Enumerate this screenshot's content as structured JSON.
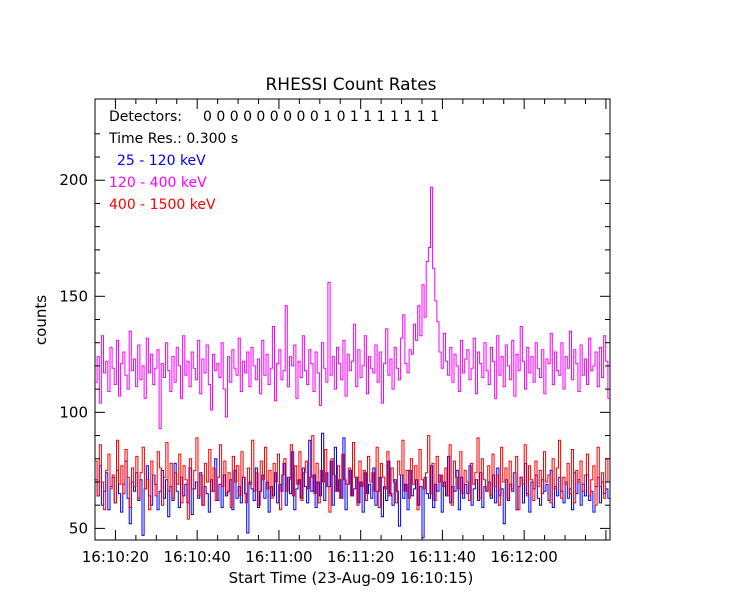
{
  "chart_data": {
    "type": "line",
    "title": "RHESSI Count Rates",
    "xlabel": "Start Time (23-Aug-09 16:10:15)",
    "ylabel": "counts",
    "x_unit": "seconds",
    "x_range": [
      0,
      126
    ],
    "ylim": [
      45,
      235
    ],
    "y_ticks": [
      50,
      100,
      150,
      200
    ],
    "x_tick_values": [
      5,
      25,
      45,
      65,
      85,
      105
    ],
    "x_tick_labels": [
      "16:10:20",
      "16:10:40",
      "16:11:00",
      "16:11:20",
      "16:11:40",
      "16:12:00"
    ],
    "grid": false,
    "annotations": {
      "detectors_label": "Detectors:",
      "detectors_flags": "0 0 0 0 0 0 0 0 0 1 0 1 1 1 1 1 1 1",
      "time_res": "Time Res.: 0.300 s"
    },
    "legend_placement": "top-left",
    "series": [
      {
        "name": "25 - 120 keV",
        "color": "#0000ff",
        "y": [
          71,
          64,
          77,
          60,
          66,
          74,
          58,
          68,
          72,
          61,
          75,
          65,
          57,
          69,
          79,
          63,
          52,
          70,
          66,
          74,
          62,
          71,
          47,
          67,
          77,
          64,
          60,
          73,
          69,
          58,
          66,
          75,
          63,
          71,
          55,
          68,
          62,
          78,
          66,
          59,
          72,
          64,
          69,
          61,
          76,
          56,
          67,
          70,
          63,
          74,
          60,
          68,
          65,
          57,
          71,
          66,
          80,
          62,
          69,
          59,
          73,
          64,
          66,
          71,
          58,
          75,
          63,
          68,
          61,
          72,
          65,
          48,
          70,
          67,
          62,
          76,
          59,
          66,
          73,
          63,
          70,
          57,
          68,
          64,
          74,
          61,
          69,
          66,
          78,
          60,
          72,
          65,
          83,
          58,
          67,
          71,
          63,
          76,
          68,
          61,
          88,
          66,
          73,
          59,
          70,
          64,
          91,
          62,
          74,
          68,
          79,
          60,
          85,
          66,
          71,
          63,
          89,
          58,
          69,
          75,
          64,
          67,
          72,
          61,
          70,
          57,
          74,
          65,
          69,
          63,
          76,
          60,
          66,
          72,
          55,
          68,
          62,
          79,
          65,
          60,
          71,
          66,
          51,
          73,
          63,
          69,
          58,
          75,
          64,
          67,
          71,
          60,
          68,
          46,
          72,
          65,
          63,
          77,
          59,
          69,
          66,
          73,
          57,
          70,
          64,
          81,
          61,
          68,
          66,
          75,
          58,
          72,
          63,
          69,
          65,
          77,
          60,
          67,
          71,
          62,
          74,
          59,
          68,
          66,
          70,
          63,
          73,
          61,
          76,
          64,
          67,
          52,
          71,
          62,
          69,
          66,
          74,
          58,
          68,
          72,
          61,
          78,
          65,
          57,
          70,
          67,
          73,
          63,
          60,
          71,
          66,
          69,
          62,
          75,
          59,
          68,
          64,
          72,
          66,
          61,
          70,
          63,
          67,
          58,
          74,
          65,
          71,
          60,
          69,
          64,
          73,
          62,
          66,
          57,
          68,
          72,
          61,
          70,
          65,
          67,
          63
        ]
      },
      {
        "name": "120 - 400 keV",
        "color": "#ff00ff",
        "y": [
          113,
          124,
          104,
          133,
          117,
          122,
          109,
          128,
          119,
          112,
          131,
          107,
          121,
          126,
          116,
          110,
          135,
          118,
          123,
          111,
          129,
          114,
          120,
          106,
          132,
          117,
          125,
          112,
          119,
          127,
          93,
          121,
          115,
          130,
          118,
          109,
          124,
          113,
          128,
          120,
          106,
          133,
          116,
          122,
          111,
          126,
          119,
          114,
          131,
          108,
          123,
          117,
          129,
          112,
          101,
          125,
          118,
          121,
          115,
          130,
          110,
          98,
          124,
          113,
          127,
          119,
          116,
          132,
          109,
          122,
          117,
          126,
          111,
          128,
          120,
          114,
          123,
          108,
          131,
          116,
          125,
          112,
          119,
          137,
          105,
          121,
          127,
          114,
          118,
          146,
          111,
          124,
          120,
          129,
          106,
          122,
          115,
          133,
          118,
          112,
          127,
          121,
          109,
          126,
          117,
          103,
          130,
          119,
          113,
          156,
          116,
          124,
          110,
          128,
          121,
          114,
          131,
          107,
          125,
          118,
          122,
          138,
          111,
          127,
          115,
          120,
          133,
          108,
          124,
          119,
          117,
          129,
          113,
          126,
          104,
          121,
          136,
          116,
          123,
          110,
          128,
          119,
          114,
          132,
          142,
          121,
          117,
          127,
          125,
          138,
          131,
          146,
          133,
          155,
          141,
          165,
          171,
          197,
          162,
          148,
          139,
          126,
          119,
          134,
          122,
          116,
          128,
          113,
          125,
          120,
          109,
          131,
          117,
          123,
          127,
          114,
          119,
          132,
          108,
          126,
          121,
          115,
          130,
          118,
          112,
          128,
          122,
          106,
          133,
          116,
          124,
          111,
          129,
          120,
          114,
          131,
          107,
          125,
          118,
          137,
          122,
          110,
          128,
          117,
          124,
          113,
          130,
          119,
          115,
          127,
          108,
          123,
          121,
          134,
          112,
          126,
          118,
          116,
          130,
          110,
          124,
          119,
          135,
          114,
          127,
          121,
          109,
          129,
          116,
          123,
          112,
          132,
          118,
          120,
          126,
          111,
          128,
          115,
          133,
          122,
          106
        ]
      },
      {
        "name": "400 - 1500 keV",
        "color": "#ff0000",
        "y": [
          79,
          64,
          86,
          70,
          58,
          75,
          82,
          67,
          73,
          61,
          88,
          69,
          77,
          65,
          84,
          72,
          59,
          76,
          68,
          81,
          63,
          74,
          85,
          67,
          71,
          58,
          79,
          73,
          64,
          83,
          76,
          60,
          72,
          87,
          66,
          78,
          63,
          74,
          69,
          82,
          61,
          77,
          71,
          54,
          80,
          67,
          75,
          89,
          64,
          73,
          60,
          78,
          70,
          84,
          66,
          76,
          62,
          72,
          86,
          68,
          79,
          65,
          74,
          59,
          81,
          70,
          77,
          64,
          83,
          72,
          61,
          76,
          69,
          88,
          66,
          74,
          60,
          79,
          71,
          85,
          67,
          75,
          63,
          78,
          70,
          82,
          58,
          73,
          80,
          66,
          71,
          86,
          64,
          77,
          69,
          83,
          62,
          74,
          79,
          67,
          72,
          90,
          65,
          78,
          61,
          75,
          70,
          84,
          68,
          57,
          80,
          73,
          66,
          77,
          63,
          82,
          71,
          69,
          76,
          64,
          87,
          72,
          60,
          79,
          68,
          75,
          62,
          81,
          70,
          74,
          66,
          85,
          59,
          78,
          72,
          67,
          83,
          64,
          76,
          70,
          61,
          79,
          73,
          88,
          66,
          75,
          63,
          80,
          69,
          77,
          58,
          84,
          71,
          67,
          74,
          90,
          65,
          78,
          62,
          81,
          70,
          73,
          68,
          76,
          64,
          86,
          60,
          79,
          72,
          67,
          83,
          65,
          75,
          70,
          62,
          78,
          69,
          74,
          89,
          63,
          80,
          71,
          66,
          77,
          64,
          82,
          68,
          73,
          60,
          85,
          70,
          76,
          63,
          79,
          67,
          74,
          81,
          58,
          72,
          69,
          86,
          64,
          77,
          71,
          62,
          79,
          68,
          75,
          65,
          83,
          70,
          73,
          61,
          80,
          67,
          76,
          88,
          63,
          72,
          69,
          78,
          65,
          84,
          61,
          75,
          70,
          79,
          66,
          73,
          82,
          64,
          71,
          77,
          60,
          85,
          68,
          74,
          63,
          80,
          70
        ]
      }
    ]
  }
}
